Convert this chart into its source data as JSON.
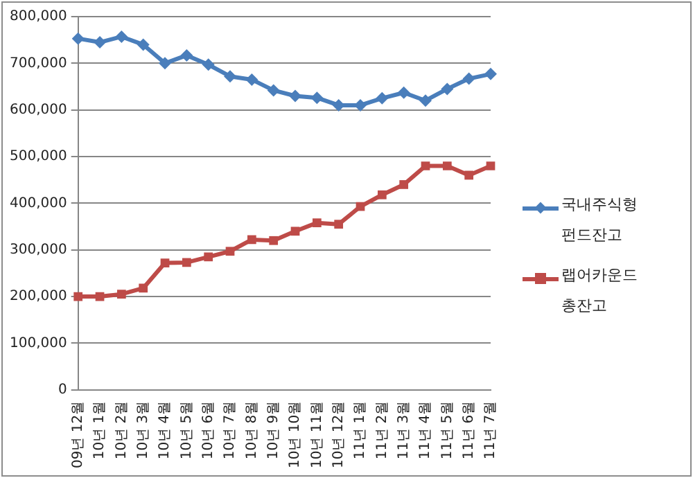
{
  "chart_data": {
    "type": "line",
    "categories": [
      "09년 12월",
      "10년 1월",
      "10년 2월",
      "10년 3월",
      "10년 4월",
      "10년 5월",
      "10년 6월",
      "10년 7월",
      "10년 8월",
      "10년 9월",
      "10년 10월",
      "10년 11월",
      "10년 12월",
      "11년 1월",
      "11년 2월",
      "11년 3월",
      "11년 4월",
      "11년 5월",
      "11년 6월",
      "11년 7월"
    ],
    "series": [
      {
        "name": "국내주식형 펀드잔고",
        "color": "#4a7ebb",
        "marker": "diamond",
        "values": [
          753000,
          745000,
          757000,
          740000,
          700000,
          717000,
          697000,
          672000,
          665000,
          642000,
          630000,
          626000,
          610000,
          610000,
          625000,
          637000,
          620000,
          645000,
          667000,
          677000
        ]
      },
      {
        "name": "랩어카운드 총잔고",
        "color": "#be4b48",
        "marker": "square",
        "values": [
          200000,
          200000,
          205000,
          218000,
          272000,
          273000,
          285000,
          297000,
          322000,
          320000,
          340000,
          358000,
          355000,
          393000,
          418000,
          440000,
          480000,
          480000,
          460000,
          480000
        ]
      }
    ],
    "ylim": [
      0,
      800000
    ],
    "yticks": [
      0,
      {
        "value": 100000,
        "label": "100,000"
      },
      {
        "value": 200000,
        "label": "200,000"
      },
      {
        "value": 300000,
        "label": "300,000"
      },
      {
        "value": 400000,
        "label": "400,000"
      },
      {
        "value": 500000,
        "label": "500,000"
      },
      {
        "value": 600000,
        "label": "600,000"
      },
      {
        "value": 700000,
        "label": "700,000"
      },
      {
        "value": 800000,
        "label": "800,000"
      }
    ],
    "grid": "y",
    "legend": "right",
    "line_style": "solid"
  }
}
